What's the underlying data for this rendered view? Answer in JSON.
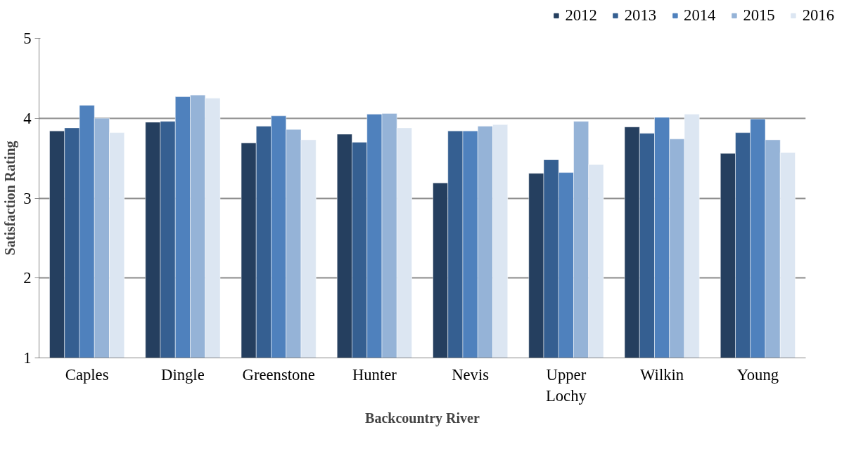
{
  "chart_data": {
    "type": "bar",
    "xlabel": "Backcountry River",
    "ylabel": "Satisfaction Rating",
    "categories": [
      "Caples",
      "Dingle",
      "Greenstone",
      "Hunter",
      "Nevis",
      "Upper Lochy",
      "Wilkin",
      "Young"
    ],
    "series": [
      {
        "name": "2012",
        "color": "#253f5f",
        "values": [
          3.84,
          3.95,
          3.69,
          3.8,
          3.19,
          3.31,
          3.89,
          3.56
        ]
      },
      {
        "name": "2013",
        "color": "#355f91",
        "values": [
          3.88,
          3.96,
          3.9,
          3.7,
          3.84,
          3.48,
          3.81,
          3.82
        ]
      },
      {
        "name": "2014",
        "color": "#4f81bd",
        "values": [
          4.16,
          4.27,
          4.03,
          4.05,
          3.84,
          3.32,
          4.01,
          3.99
        ]
      },
      {
        "name": "2015",
        "color": "#95b3d7",
        "values": [
          4.0,
          4.29,
          3.86,
          4.06,
          3.9,
          3.96,
          3.74,
          3.73
        ]
      },
      {
        "name": "2016",
        "color": "#dce6f2",
        "values": [
          3.82,
          4.25,
          3.73,
          3.88,
          3.92,
          3.42,
          4.05,
          3.57
        ]
      }
    ],
    "ylim": [
      1,
      5
    ],
    "yticks": [
      1,
      2,
      3,
      4,
      5
    ],
    "grid": "y",
    "legend": "top right"
  }
}
